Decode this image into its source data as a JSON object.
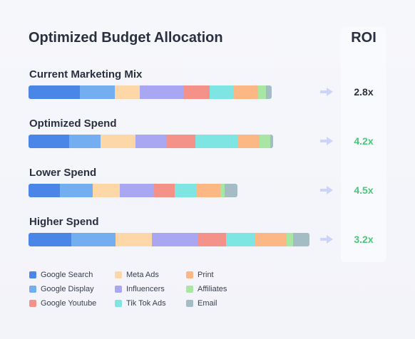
{
  "title": "Optimized Budget Allocation",
  "roi_header": "ROI",
  "colors": {
    "Google Search": "#4a86e8",
    "Google Display": "#73aef0",
    "Meta Ads": "#fdd7a8",
    "Influencers": "#a9a7f1",
    "Google Youtube": "#f4928a",
    "Tik Tok Ads": "#7ee5e2",
    "Print": "#fbb885",
    "Affiliates": "#a9e6a3",
    "Email": "#a4bcc3",
    "roi_default": "#2b3040",
    "roi_positive": "#4cc77a",
    "arrow": "#ccd5f7"
  },
  "rows": [
    {
      "label": "Current Marketing Mix",
      "roi": "2.8x",
      "roi_highlight": false,
      "segments": [
        {
          "channel": "Google Search",
          "share": 72
        },
        {
          "channel": "Google Display",
          "share": 49
        },
        {
          "channel": "Meta Ads",
          "share": 35
        },
        {
          "channel": "Influencers",
          "share": 61
        },
        {
          "channel": "Google Youtube",
          "share": 37
        },
        {
          "channel": "Tik Tok Ads",
          "share": 33
        },
        {
          "channel": "Print",
          "share": 35
        },
        {
          "channel": "Affiliates",
          "share": 11
        },
        {
          "channel": "Email",
          "share": 8
        }
      ]
    },
    {
      "label": "Optimized Spend",
      "roi": "4.2x",
      "roi_highlight": true,
      "segments": [
        {
          "channel": "Google Search",
          "share": 57
        },
        {
          "channel": "Google Display",
          "share": 44
        },
        {
          "channel": "Meta Ads",
          "share": 49
        },
        {
          "channel": "Influencers",
          "share": 44
        },
        {
          "channel": "Google Youtube",
          "share": 40
        },
        {
          "channel": "Tik Tok Ads",
          "share": 60
        },
        {
          "channel": "Print",
          "share": 30
        },
        {
          "channel": "Affiliates",
          "share": 15
        },
        {
          "channel": "Email",
          "share": 4
        }
      ]
    },
    {
      "label": "Lower Spend",
      "roi": "4.5x",
      "roi_highlight": true,
      "segments": [
        {
          "channel": "Google Search",
          "share": 44
        },
        {
          "channel": "Google Display",
          "share": 46
        },
        {
          "channel": "Meta Ads",
          "share": 38
        },
        {
          "channel": "Influencers",
          "share": 48
        },
        {
          "channel": "Google Youtube",
          "share": 29
        },
        {
          "channel": "Tik Tok Ads",
          "share": 30
        },
        {
          "channel": "Print",
          "share": 34
        },
        {
          "channel": "Affiliates",
          "share": 6
        },
        {
          "channel": "Email",
          "share": 18
        }
      ]
    },
    {
      "label": "Higher Spend",
      "roi": "3.2x",
      "roi_highlight": true,
      "segments": [
        {
          "channel": "Google Search",
          "share": 60
        },
        {
          "channel": "Google Display",
          "share": 62
        },
        {
          "channel": "Meta Ads",
          "share": 51
        },
        {
          "channel": "Influencers",
          "share": 64
        },
        {
          "channel": "Google Youtube",
          "share": 40
        },
        {
          "channel": "Tik Tok Ads",
          "share": 40
        },
        {
          "channel": "Print",
          "share": 45
        },
        {
          "channel": "Affiliates",
          "share": 9
        },
        {
          "channel": "Email",
          "share": 23
        }
      ]
    }
  ],
  "legend": [
    {
      "label": "Google Search",
      "color": "#4a86e8"
    },
    {
      "label": "Google Display",
      "color": "#73aef0"
    },
    {
      "label": "Google Youtube",
      "color": "#f4928a"
    },
    {
      "label": "Meta Ads",
      "color": "#fdd7a8"
    },
    {
      "label": "Influencers",
      "color": "#a9a7f1"
    },
    {
      "label": "Tik Tok Ads",
      "color": "#7ee5e2"
    },
    {
      "label": "Print",
      "color": "#fbb885"
    },
    {
      "label": "Affiliates",
      "color": "#a9e6a3"
    },
    {
      "label": "Email",
      "color": "#a4bcc3"
    }
  ]
}
